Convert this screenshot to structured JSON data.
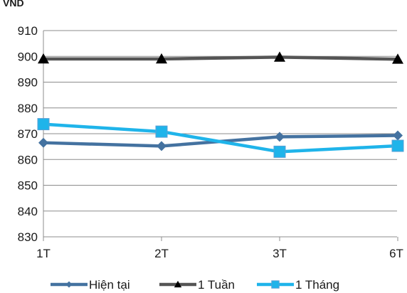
{
  "chart_data": {
    "type": "line",
    "title": "",
    "xlabel": "",
    "ylabel": "VND",
    "categories": [
      "1T",
      "2T",
      "3T",
      "6T"
    ],
    "ylim": [
      830,
      910
    ],
    "yticks": [
      830,
      840,
      850,
      860,
      870,
      880,
      890,
      900,
      910
    ],
    "grid": true,
    "legend_position": "bottom",
    "series": [
      {
        "name": "Hiện tại",
        "values": [
          866.5,
          865.2,
          868.8,
          869.3
        ],
        "color": "#4472a0",
        "marker": "diamond"
      },
      {
        "name": "1 Tuần",
        "values": [
          899.0,
          899.0,
          899.7,
          898.9
        ],
        "color": "#555555",
        "marker": "triangle"
      },
      {
        "name": "1 Tháng",
        "values": [
          873.7,
          870.8,
          863.0,
          865.3
        ],
        "color": "#1fb4ea",
        "marker": "square"
      }
    ]
  }
}
